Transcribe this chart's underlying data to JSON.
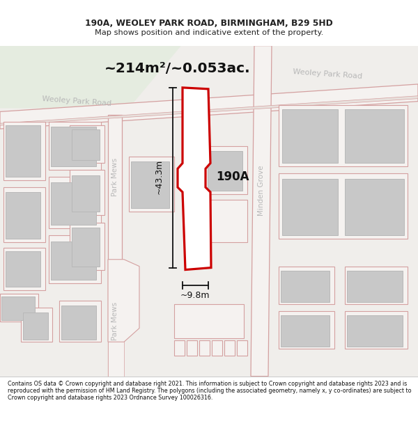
{
  "title_line1": "190A, WEOLEY PARK ROAD, BIRMINGHAM, B29 5HD",
  "title_line2": "Map shows position and indicative extent of the property.",
  "area_text": "~214m²/~0.053ac.",
  "label_190A": "190A",
  "dim_height": "~43.3m",
  "dim_width": "~9.8m",
  "footer_text": "Contains OS data © Crown copyright and database right 2021. This information is subject to Crown copyright and database rights 2023 and is reproduced with the permission of HM Land Registry. The polygons (including the associated geometry, namely x, y co-ordinates) are subject to Crown copyright and database rights 2023 Ordnance Survey 100026316.",
  "bg_color": "#f0eeeb",
  "park_color": "#e5ece0",
  "road_outline": "#d4a0a0",
  "road_fill": "#f5f2f0",
  "property_color": "#cc0000",
  "property_fill": "#ffffff",
  "building_gray": "#c8c8c8",
  "building_outline": "#b8b8b8",
  "road_outline_thin": "#e0b0b0",
  "dim_color": "#111111",
  "road_label_color": "#b8b8b8",
  "title_color": "#222222",
  "footer_color": "#111111"
}
